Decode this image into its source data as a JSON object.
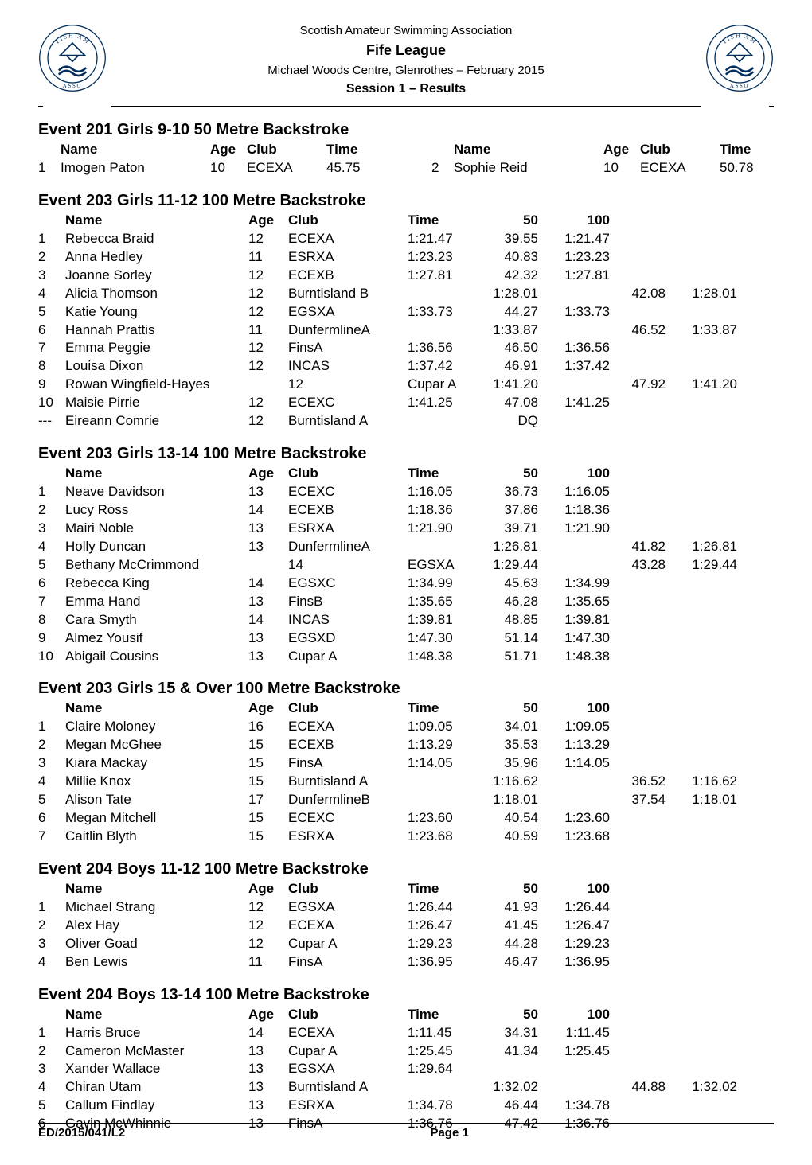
{
  "header": {
    "association": "Scottish Amateur Swimming Association",
    "league": "Fife League",
    "venue": "Michael Woods Centre, Glenrothes – February 2015",
    "session": "Session 1 – Results"
  },
  "footer": {
    "left": "ED/2015/041/L2",
    "center": "Page 1",
    "right": ""
  },
  "logo": {
    "stroke": "#002d5c",
    "fill_outer": "#ffffff",
    "text": "SASA",
    "ring_text_top": "SCOTTISH AMA",
    "ring_text_bottom": "ASSO"
  },
  "events": [
    {
      "title": "Event 201  Girls 9-10 50 Metre Backstroke",
      "layout": "simple-two",
      "columns": [
        "",
        "Name",
        "Age",
        "Club",
        "Time"
      ],
      "results": [
        {
          "place": "1",
          "name": "Imogen Paton",
          "age": "10",
          "club": "ECEXA",
          "time": "45.75"
        },
        {
          "place": "2",
          "name": "Sophie Reid",
          "age": "10",
          "club": "ECEXA",
          "time": "50.78"
        }
      ]
    },
    {
      "title": "Event 203  Girls 11-12 100 Metre Backstroke",
      "layout": "splits",
      "columns": [
        "",
        "Name",
        "Age",
        "Club",
        "Time",
        "50",
        "100"
      ],
      "results": [
        {
          "place": "1",
          "name": "Rebecca Braid",
          "age": "12",
          "club": "ECEXA",
          "time": "1:21.47",
          "s50": "39.55",
          "s100": "1:21.47"
        },
        {
          "place": "2",
          "name": "Anna Hedley",
          "age": "11",
          "club": "ESRXA",
          "time": "1:23.23",
          "s50": "40.83",
          "s100": "1:23.23"
        },
        {
          "place": "3",
          "name": "Joanne Sorley",
          "age": "12",
          "club": "ECEXB",
          "time": "1:27.81",
          "s50": "42.32",
          "s100": "1:27.81"
        },
        {
          "place": "4",
          "name": "Alicia Thomson",
          "age": "12",
          "club": "Burntisland B",
          "time": "",
          "s50": "1:28.01",
          "s100": "",
          "s50b": "42.08",
          "s100b": "1:28.01"
        },
        {
          "place": "5",
          "name": "Katie Young",
          "age": "12",
          "club": "EGSXA",
          "time": "1:33.73",
          "s50": "44.27",
          "s100": "1:33.73"
        },
        {
          "place": "6",
          "name": "Hannah Prattis",
          "age": "11",
          "club": "DunfermlineA",
          "time": "",
          "s50": "1:33.87",
          "s100": "",
          "s50b": "46.52",
          "s100b": "1:33.87"
        },
        {
          "place": "7",
          "name": "Emma Peggie",
          "age": "12",
          "club": "FinsA",
          "time": "1:36.56",
          "s50": "46.50",
          "s100": "1:36.56"
        },
        {
          "place": "8",
          "name": "Louisa Dixon",
          "age": "12",
          "club": "INCAS",
          "time": "1:37.42",
          "s50": "46.91",
          "s100": "1:37.42"
        },
        {
          "place": "9",
          "name": "Rowan Wingfield-Hayes",
          "age": "",
          "club": "12",
          "time": "Cupar A",
          "s50": "1:41.20",
          "s100": "",
          "s50b": "47.92",
          "s100b": "1:41.20"
        },
        {
          "place": "10",
          "name": "Maisie Pirrie",
          "age": "12",
          "club": "ECEXC",
          "time": "1:41.25",
          "s50": "47.08",
          "s100": "1:41.25"
        },
        {
          "place": "---",
          "name": "Eireann Comrie",
          "age": "12",
          "club": "Burntisland A",
          "time": "",
          "s50": "DQ",
          "s100": ""
        }
      ]
    },
    {
      "title": "Event 203  Girls 13-14 100 Metre Backstroke",
      "layout": "splits",
      "columns": [
        "",
        "Name",
        "Age",
        "Club",
        "Time",
        "50",
        "100"
      ],
      "results": [
        {
          "place": "1",
          "name": "Neave Davidson",
          "age": "13",
          "club": "ECEXC",
          "time": "1:16.05",
          "s50": "36.73",
          "s100": "1:16.05"
        },
        {
          "place": "2",
          "name": "Lucy Ross",
          "age": "14",
          "club": "ECEXB",
          "time": "1:18.36",
          "s50": "37.86",
          "s100": "1:18.36"
        },
        {
          "place": "3",
          "name": "Mairi Noble",
          "age": "13",
          "club": "ESRXA",
          "time": "1:21.90",
          "s50": "39.71",
          "s100": "1:21.90"
        },
        {
          "place": "4",
          "name": "Holly Duncan",
          "age": "13",
          "club": "DunfermlineA",
          "time": "",
          "s50": "1:26.81",
          "s100": "",
          "s50b": "41.82",
          "s100b": "1:26.81"
        },
        {
          "place": "5",
          "name": "Bethany McCrimmond",
          "age": "",
          "club": "14",
          "time": "EGSXA",
          "s50": "1:29.44",
          "s100": "",
          "s50b": "43.28",
          "s100b": "1:29.44"
        },
        {
          "place": "6",
          "name": "Rebecca King",
          "age": "14",
          "club": "EGSXC",
          "time": "1:34.99",
          "s50": "45.63",
          "s100": "1:34.99"
        },
        {
          "place": "7",
          "name": "Emma Hand",
          "age": "13",
          "club": "FinsB",
          "time": "1:35.65",
          "s50": "46.28",
          "s100": "1:35.65"
        },
        {
          "place": "8",
          "name": "Cara Smyth",
          "age": "14",
          "club": "INCAS",
          "time": "1:39.81",
          "s50": "48.85",
          "s100": "1:39.81"
        },
        {
          "place": "9",
          "name": "Almez Yousif",
          "age": "13",
          "club": "EGSXD",
          "time": "1:47.30",
          "s50": "51.14",
          "s100": "1:47.30"
        },
        {
          "place": "10",
          "name": "Abigail Cousins",
          "age": "13",
          "club": "Cupar A",
          "time": "1:48.38",
          "s50": "51.71",
          "s100": "1:48.38"
        }
      ]
    },
    {
      "title": "Event 203  Girls 15 & Over 100 Metre Backstroke",
      "layout": "splits",
      "columns": [
        "",
        "Name",
        "Age",
        "Club",
        "Time",
        "50",
        "100"
      ],
      "results": [
        {
          "place": "1",
          "name": "Claire Moloney",
          "age": "16",
          "club": "ECEXA",
          "time": "1:09.05",
          "s50": "34.01",
          "s100": "1:09.05"
        },
        {
          "place": "2",
          "name": "Megan McGhee",
          "age": "15",
          "club": "ECEXB",
          "time": "1:13.29",
          "s50": "35.53",
          "s100": "1:13.29"
        },
        {
          "place": "3",
          "name": "Kiara Mackay",
          "age": "15",
          "club": "FinsA",
          "time": "1:14.05",
          "s50": "35.96",
          "s100": "1:14.05"
        },
        {
          "place": "4",
          "name": "Millie Knox",
          "age": "15",
          "club": "Burntisland A",
          "time": "",
          "s50": "1:16.62",
          "s100": "",
          "s50b": "36.52",
          "s100b": "1:16.62"
        },
        {
          "place": "5",
          "name": "Alison Tate",
          "age": "17",
          "club": "DunfermlineB",
          "time": "",
          "s50": "1:18.01",
          "s100": "",
          "s50b": "37.54",
          "s100b": "1:18.01"
        },
        {
          "place": "6",
          "name": "Megan Mitchell",
          "age": "15",
          "club": "ECEXC",
          "time": "1:23.60",
          "s50": "40.54",
          "s100": "1:23.60"
        },
        {
          "place": "7",
          "name": "Caitlin Blyth",
          "age": "15",
          "club": "ESRXA",
          "time": "1:23.68",
          "s50": "40.59",
          "s100": "1:23.68"
        }
      ]
    },
    {
      "title": "Event 204  Boys 11-12 100 Metre Backstroke",
      "layout": "splits",
      "columns": [
        "",
        "Name",
        "Age",
        "Club",
        "Time",
        "50",
        "100"
      ],
      "results": [
        {
          "place": "1",
          "name": "Michael Strang",
          "age": "12",
          "club": "EGSXA",
          "time": "1:26.44",
          "s50": "41.93",
          "s100": "1:26.44"
        },
        {
          "place": "2",
          "name": "Alex Hay",
          "age": "12",
          "club": "ECEXA",
          "time": "1:26.47",
          "s50": "41.45",
          "s100": "1:26.47"
        },
        {
          "place": "3",
          "name": "Oliver Goad",
          "age": "12",
          "club": "Cupar A",
          "time": "1:29.23",
          "s50": "44.28",
          "s100": "1:29.23"
        },
        {
          "place": "4",
          "name": "Ben Lewis",
          "age": "11",
          "club": "FinsA",
          "time": "1:36.95",
          "s50": "46.47",
          "s100": "1:36.95"
        }
      ]
    },
    {
      "title": "Event 204  Boys 13-14 100 Metre Backstroke",
      "layout": "splits",
      "columns": [
        "",
        "Name",
        "Age",
        "Club",
        "Time",
        "50",
        "100"
      ],
      "results": [
        {
          "place": "1",
          "name": "Harris Bruce",
          "age": "14",
          "club": "ECEXA",
          "time": "1:11.45",
          "s50": "34.31",
          "s100": "1:11.45"
        },
        {
          "place": "2",
          "name": "Cameron McMaster",
          "age": "13",
          "club": "Cupar A",
          "time": "1:25.45",
          "s50": "41.34",
          "s100": "1:25.45"
        },
        {
          "place": "3",
          "name": "Xander Wallace",
          "age": "13",
          "club": "EGSXA",
          "time": "1:29.64",
          "s50": "",
          "s100": ""
        },
        {
          "place": "4",
          "name": "Chiran Utam",
          "age": "13",
          "club": "Burntisland A",
          "time": "",
          "s50": "1:32.02",
          "s100": "",
          "s50b": "44.88",
          "s100b": "1:32.02"
        },
        {
          "place": "5",
          "name": "Callum Findlay",
          "age": "13",
          "club": "ESRXA",
          "time": "1:34.78",
          "s50": "46.44",
          "s100": "1:34.78"
        },
        {
          "place": "6",
          "name": "Gavin McWhinnie",
          "age": "13",
          "club": "FinsA",
          "time": "1:36.76",
          "s50": "47.42",
          "s100": "1:36.76"
        }
      ]
    }
  ]
}
